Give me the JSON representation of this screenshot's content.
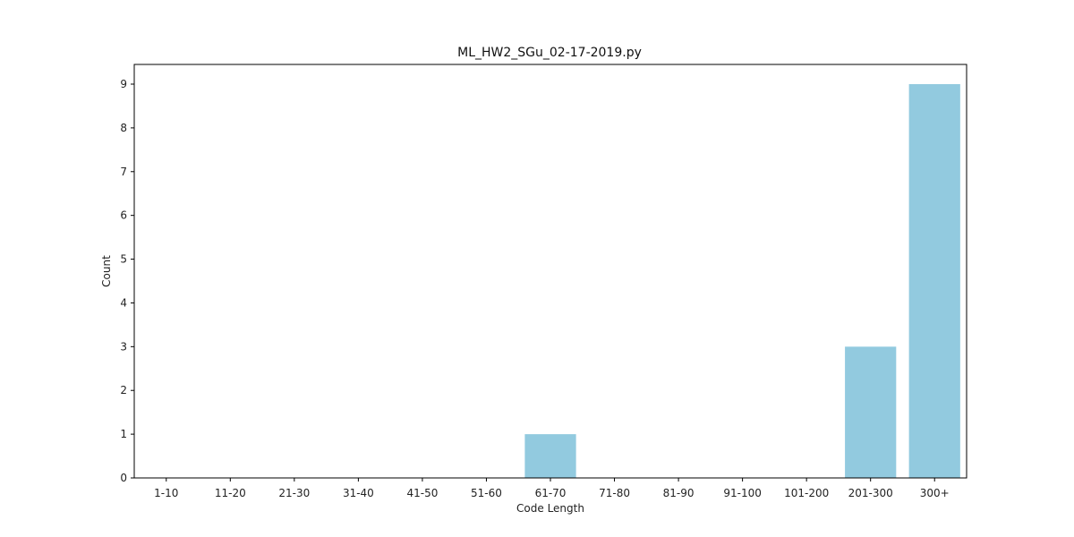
{
  "chart_data": {
    "type": "bar",
    "title": "ML_HW2_SGu_02-17-2019.py",
    "xlabel": "Code Length",
    "ylabel": "Count",
    "categories": [
      "1-10",
      "11-20",
      "21-30",
      "31-40",
      "41-50",
      "51-60",
      "61-70",
      "71-80",
      "81-90",
      "91-100",
      "101-200",
      "201-300",
      "300+"
    ],
    "values": [
      0,
      0,
      0,
      0,
      0,
      0,
      1,
      0,
      0,
      0,
      0,
      3,
      9
    ],
    "ylim": [
      0,
      9.45
    ],
    "yticks": [
      0,
      1,
      2,
      3,
      4,
      5,
      6,
      7,
      8,
      9
    ],
    "grid": false,
    "bar_color": "#92cadf"
  }
}
